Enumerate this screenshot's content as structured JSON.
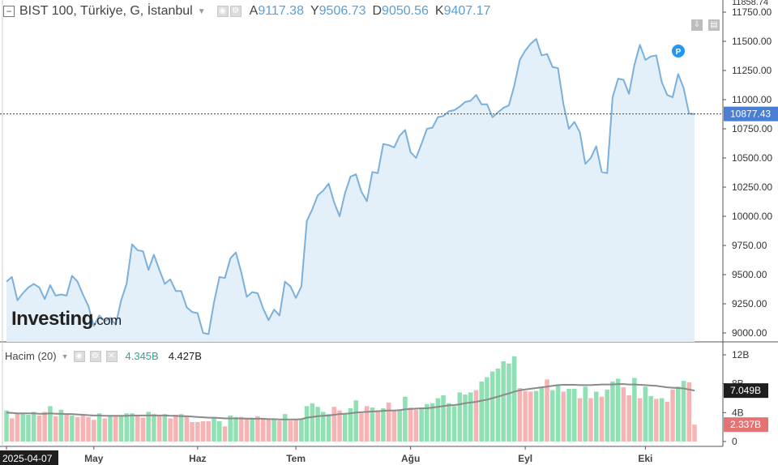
{
  "header": {
    "title": "BIST 100, Türkiye, G, İstanbul",
    "ohlc": [
      {
        "k": "A",
        "v": "9117.38"
      },
      {
        "k": "Y",
        "v": "9506.73"
      },
      {
        "k": "D",
        "v": "9050.56"
      },
      {
        "k": "K",
        "v": "9407.17"
      }
    ]
  },
  "logo": {
    "main": "Investing",
    "suffix": ".com"
  },
  "p_marker": "P",
  "colors": {
    "price_line": "#7bb0dc",
    "price_fill": "#e3f0fa",
    "up": "#8fe0b2",
    "down": "#f7b3b3",
    "ma": "#8a8a8a",
    "current_badge": "#4a7fd6",
    "vol_up_badge": "#1e1e1e",
    "vol_down_badge": "#e57373",
    "accent_up": "#26a69a"
  },
  "chart_data": [
    {
      "type": "area",
      "title": "BIST 100, Türkiye, G, İstanbul",
      "x_ticks": [
        {
          "label": "2025-04-07",
          "i": 0
        },
        {
          "label": "May",
          "i": 16
        },
        {
          "label": "Haz",
          "i": 35
        },
        {
          "label": "Tem",
          "i": 53
        },
        {
          "label": "Ağu",
          "i": 74
        },
        {
          "label": "Eyl",
          "i": 95
        },
        {
          "label": "Eki",
          "i": 117
        }
      ],
      "y_ticks": [
        9000,
        9250,
        9500,
        9750,
        10000,
        10250,
        10500,
        10750,
        11000,
        11250,
        11500,
        11750
      ],
      "y_tick_labels": [
        "9000.00",
        "9250.00",
        "9500.00",
        "9750.00",
        "10000.00",
        "10250.00",
        "10500.00",
        "10750.00",
        "11000.00",
        "11250.00",
        "11500.00",
        "11750.00"
      ],
      "ylim": [
        8900,
        11800
      ],
      "current_value": 10877.43,
      "current_label": "10877.43",
      "top_label": "11858.74",
      "values": [
        9440,
        9480,
        9280,
        9340,
        9390,
        9420,
        9390,
        9290,
        9410,
        9320,
        9330,
        9320,
        9490,
        9440,
        9330,
        9230,
        9060,
        9150,
        9100,
        9130,
        9070,
        9280,
        9420,
        9760,
        9710,
        9700,
        9540,
        9670,
        9540,
        9420,
        9460,
        9360,
        9360,
        9220,
        9180,
        9170,
        9000,
        8990,
        9260,
        9480,
        9470,
        9640,
        9690,
        9520,
        9310,
        9350,
        9340,
        9210,
        9110,
        9200,
        9150,
        9440,
        9400,
        9300,
        9400,
        9960,
        10060,
        10180,
        10220,
        10280,
        10120,
        10000,
        10200,
        10340,
        10360,
        10210,
        10130,
        10380,
        10370,
        10620,
        10610,
        10590,
        10690,
        10740,
        10550,
        10500,
        10620,
        10750,
        10760,
        10850,
        10860,
        10900,
        10910,
        10940,
        10980,
        10990,
        11040,
        10960,
        10960,
        10850,
        10890,
        10930,
        10950,
        11120,
        11340,
        11420,
        11480,
        11520,
        11380,
        11390,
        11280,
        11270,
        10960,
        10750,
        10810,
        10720,
        10450,
        10500,
        10600,
        10380,
        10370,
        11020,
        11180,
        11170,
        11050,
        11300,
        11470,
        11340,
        11370,
        11380,
        11150,
        11040,
        11020,
        11220,
        11100,
        10880,
        10877
      ]
    },
    {
      "type": "bar",
      "title": "Hacim (20)",
      "ylabel": "",
      "y_ticks": [
        0,
        4,
        8,
        12
      ],
      "y_tick_labels": [
        "0",
        "4B",
        "8B",
        "12B"
      ],
      "ylim": [
        0,
        12.8
      ],
      "legend_values": [
        {
          "label": "4.345B",
          "color": "#26a69a"
        },
        {
          "label": "4.427B",
          "color": "#1e1e1e"
        }
      ],
      "badges": [
        {
          "label": "7.049B",
          "value": 7.049,
          "color": "#1e1e1e"
        },
        {
          "label": "2.337B",
          "value": 2.337,
          "color": "#e57373"
        }
      ],
      "volume": [
        4.3,
        3.2,
        3.9,
        3.8,
        3.7,
        4.1,
        3.6,
        4.1,
        4.9,
        3.5,
        4.4,
        3.8,
        3.6,
        3.4,
        3.6,
        3.4,
        3.0,
        3.9,
        3.2,
        3.5,
        3.6,
        3.6,
        3.9,
        3.9,
        3.7,
        3.3,
        4.1,
        3.8,
        3.6,
        3.8,
        3.2,
        3.7,
        3.8,
        3.5,
        2.7,
        2.7,
        2.8,
        2.8,
        3.4,
        2.8,
        2.1,
        3.6,
        3.4,
        3.4,
        3.3,
        3.3,
        3.5,
        3.2,
        3.2,
        3.1,
        2.9,
        3.8,
        2.9,
        3.1,
        3.0,
        4.9,
        5.3,
        4.8,
        4.1,
        3.8,
        4.8,
        4.3,
        3.9,
        4.6,
        5.7,
        3.9,
        4.9,
        4.7,
        4.3,
        4.6,
        5.4,
        4.4,
        4.3,
        6.2,
        4.7,
        4.4,
        4.6,
        5.2,
        5.3,
        6.0,
        6.4,
        5.3,
        4.9,
        6.8,
        6.5,
        6.8,
        7.1,
        8.3,
        8.9,
        9.7,
        10.1,
        11.1,
        10.8,
        11.8,
        7.4,
        7.0,
        6.9,
        7.0,
        7.4,
        8.6,
        7.1,
        7.9,
        6.9,
        7.3,
        7.3,
        6.0,
        7.6,
        6.0,
        6.9,
        6.2,
        7.2,
        8.3,
        8.7,
        7.5,
        6.4,
        8.8,
        6.0,
        7.6,
        6.3,
        5.9,
        6.0,
        5.5,
        7.2,
        7.6,
        8.4,
        8.2,
        2.337
      ],
      "up": [
        1,
        0,
        0,
        1,
        1,
        1,
        0,
        0,
        1,
        0,
        1,
        0,
        1,
        0,
        0,
        0,
        0,
        1,
        0,
        1,
        0,
        1,
        1,
        1,
        0,
        0,
        1,
        1,
        0,
        1,
        0,
        0,
        1,
        0,
        0,
        0,
        0,
        0,
        1,
        1,
        0,
        1,
        1,
        0,
        0,
        1,
        0,
        0,
        0,
        1,
        0,
        1,
        0,
        0,
        1,
        1,
        1,
        1,
        1,
        1,
        0,
        0,
        1,
        1,
        1,
        0,
        0,
        1,
        0,
        1,
        0,
        0,
        1,
        1,
        0,
        0,
        1,
        1,
        1,
        1,
        1,
        1,
        1,
        1,
        1,
        1,
        0,
        1,
        1,
        1,
        1,
        1,
        1,
        1,
        0,
        0,
        0,
        1,
        1,
        0,
        1,
        1,
        0,
        1,
        1,
        0,
        1,
        0,
        1,
        0,
        1,
        1,
        1,
        0,
        0,
        1,
        0,
        1,
        1,
        0,
        1,
        0,
        0,
        1,
        1,
        0,
        0
      ],
      "ma": [
        4.0,
        3.95,
        3.9,
        3.9,
        3.9,
        3.9,
        3.85,
        3.85,
        3.9,
        3.85,
        3.85,
        3.8,
        3.8,
        3.75,
        3.7,
        3.65,
        3.6,
        3.6,
        3.55,
        3.55,
        3.55,
        3.55,
        3.55,
        3.6,
        3.6,
        3.6,
        3.6,
        3.6,
        3.6,
        3.6,
        3.55,
        3.55,
        3.5,
        3.5,
        3.45,
        3.4,
        3.35,
        3.3,
        3.3,
        3.25,
        3.2,
        3.2,
        3.2,
        3.2,
        3.15,
        3.15,
        3.15,
        3.15,
        3.1,
        3.1,
        3.05,
        3.05,
        3.05,
        3.05,
        3.1,
        3.3,
        3.4,
        3.5,
        3.55,
        3.6,
        3.7,
        3.8,
        3.85,
        3.9,
        4.0,
        4.05,
        4.1,
        4.15,
        4.2,
        4.25,
        4.3,
        4.3,
        4.35,
        4.45,
        4.5,
        4.55,
        4.6,
        4.6,
        4.7,
        4.8,
        4.9,
        5.0,
        5.05,
        5.15,
        5.3,
        5.4,
        5.5,
        5.65,
        5.8,
        6.0,
        6.2,
        6.45,
        6.65,
        6.9,
        7.1,
        7.2,
        7.3,
        7.4,
        7.5,
        7.6,
        7.7,
        7.8,
        7.85,
        7.85,
        7.85,
        7.8,
        7.8,
        7.8,
        7.85,
        7.9,
        7.9,
        7.9,
        7.95,
        7.95,
        7.9,
        7.9,
        7.85,
        7.8,
        7.75,
        7.7,
        7.6,
        7.5,
        7.45,
        7.4,
        7.35,
        7.2,
        7.05
      ]
    }
  ]
}
